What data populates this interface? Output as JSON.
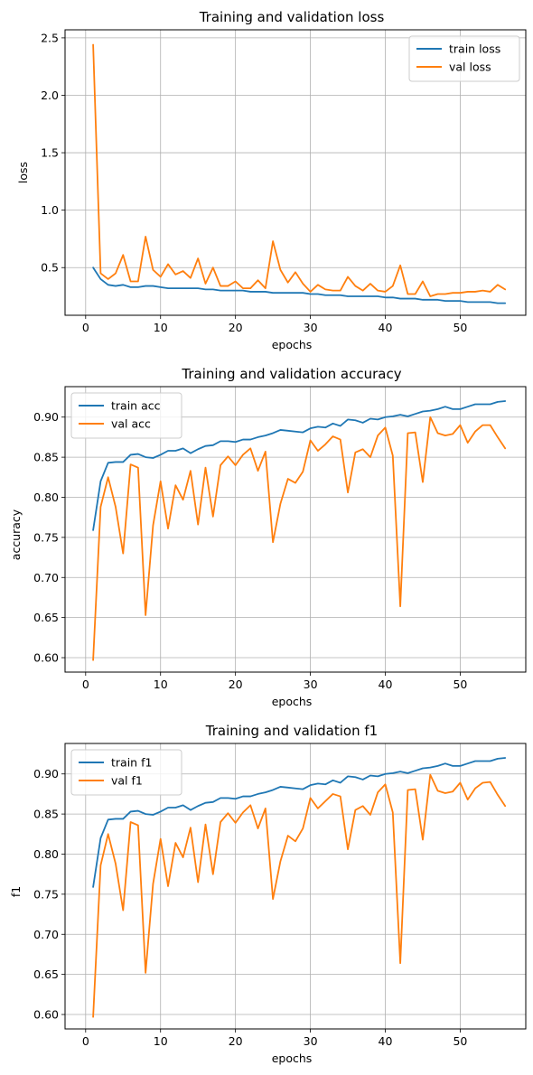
{
  "colors": {
    "train": "#1f77b4",
    "val": "#ff7f0e",
    "grid": "#b0b0b0"
  },
  "chart_data": [
    {
      "type": "line",
      "title": "Training and validation loss",
      "xlabel": "epochs",
      "ylabel": "loss",
      "xlim": [
        -2.75,
        58.75
      ],
      "ylim": [
        0.085,
        2.57
      ],
      "xticks": [
        0,
        10,
        20,
        30,
        40,
        50
      ],
      "xtick_labels": [
        "0",
        "10",
        "20",
        "30",
        "40",
        "50"
      ],
      "yticks": [
        0.5,
        1.0,
        1.5,
        2.0,
        2.5
      ],
      "ytick_labels": [
        "0.5",
        "1.0",
        "1.5",
        "2.0",
        "2.5"
      ],
      "grid": true,
      "legend": "upper right",
      "x": [
        1,
        2,
        3,
        4,
        5,
        6,
        7,
        8,
        9,
        10,
        11,
        12,
        13,
        14,
        15,
        16,
        17,
        18,
        19,
        20,
        21,
        22,
        23,
        24,
        25,
        26,
        27,
        28,
        29,
        30,
        31,
        32,
        33,
        34,
        35,
        36,
        37,
        38,
        39,
        40,
        41,
        42,
        43,
        44,
        45,
        46,
        47,
        48,
        49,
        50,
        51,
        52,
        53,
        54,
        55,
        56
      ],
      "series": [
        {
          "name": "train loss",
          "values": [
            0.5,
            0.4,
            0.35,
            0.34,
            0.35,
            0.33,
            0.33,
            0.34,
            0.34,
            0.33,
            0.32,
            0.32,
            0.32,
            0.32,
            0.32,
            0.31,
            0.31,
            0.3,
            0.3,
            0.3,
            0.3,
            0.29,
            0.29,
            0.29,
            0.28,
            0.28,
            0.28,
            0.28,
            0.28,
            0.27,
            0.27,
            0.26,
            0.26,
            0.26,
            0.25,
            0.25,
            0.25,
            0.25,
            0.25,
            0.24,
            0.24,
            0.23,
            0.23,
            0.23,
            0.22,
            0.22,
            0.22,
            0.21,
            0.21,
            0.21,
            0.2,
            0.2,
            0.2,
            0.2,
            0.19,
            0.19
          ]
        },
        {
          "name": "val loss",
          "values": [
            2.44,
            0.45,
            0.4,
            0.45,
            0.61,
            0.38,
            0.38,
            0.77,
            0.48,
            0.42,
            0.53,
            0.44,
            0.47,
            0.41,
            0.58,
            0.36,
            0.5,
            0.34,
            0.34,
            0.38,
            0.32,
            0.32,
            0.39,
            0.32,
            0.73,
            0.48,
            0.37,
            0.46,
            0.36,
            0.29,
            0.35,
            0.31,
            0.3,
            0.3,
            0.42,
            0.34,
            0.3,
            0.36,
            0.3,
            0.29,
            0.34,
            0.52,
            0.27,
            0.27,
            0.38,
            0.25,
            0.27,
            0.27,
            0.28,
            0.28,
            0.29,
            0.29,
            0.3,
            0.29,
            0.35,
            0.31
          ]
        }
      ]
    },
    {
      "type": "line",
      "title": "Training and validation accuracy",
      "xlabel": "epochs",
      "ylabel": "accuracy",
      "xlim": [
        -2.75,
        58.75
      ],
      "ylim": [
        0.582,
        0.938
      ],
      "xticks": [
        0,
        10,
        20,
        30,
        40,
        50
      ],
      "xtick_labels": [
        "0",
        "10",
        "20",
        "30",
        "40",
        "50"
      ],
      "yticks": [
        0.6,
        0.65,
        0.7,
        0.75,
        0.8,
        0.85,
        0.9
      ],
      "ytick_labels": [
        "0.60",
        "0.65",
        "0.70",
        "0.75",
        "0.80",
        "0.85",
        "0.90"
      ],
      "grid": true,
      "legend": "upper left",
      "x": [
        1,
        2,
        3,
        4,
        5,
        6,
        7,
        8,
        9,
        10,
        11,
        12,
        13,
        14,
        15,
        16,
        17,
        18,
        19,
        20,
        21,
        22,
        23,
        24,
        25,
        26,
        27,
        28,
        29,
        30,
        31,
        32,
        33,
        34,
        35,
        36,
        37,
        38,
        39,
        40,
        41,
        42,
        43,
        44,
        45,
        46,
        47,
        48,
        49,
        50,
        51,
        52,
        53,
        54,
        55,
        56
      ],
      "series": [
        {
          "name": "train acc",
          "values": [
            0.759,
            0.82,
            0.843,
            0.844,
            0.844,
            0.853,
            0.854,
            0.85,
            0.849,
            0.853,
            0.858,
            0.858,
            0.861,
            0.855,
            0.86,
            0.864,
            0.865,
            0.87,
            0.87,
            0.869,
            0.872,
            0.872,
            0.875,
            0.877,
            0.88,
            0.884,
            0.883,
            0.882,
            0.881,
            0.886,
            0.888,
            0.887,
            0.892,
            0.889,
            0.897,
            0.896,
            0.893,
            0.898,
            0.897,
            0.9,
            0.901,
            0.903,
            0.901,
            0.904,
            0.907,
            0.908,
            0.91,
            0.913,
            0.91,
            0.91,
            0.913,
            0.916,
            0.916,
            0.916,
            0.919,
            0.92
          ]
        },
        {
          "name": "val acc",
          "values": [
            0.597,
            0.788,
            0.825,
            0.788,
            0.73,
            0.841,
            0.837,
            0.653,
            0.765,
            0.82,
            0.761,
            0.815,
            0.797,
            0.833,
            0.766,
            0.837,
            0.776,
            0.84,
            0.851,
            0.84,
            0.853,
            0.861,
            0.833,
            0.857,
            0.744,
            0.792,
            0.823,
            0.818,
            0.832,
            0.871,
            0.858,
            0.866,
            0.876,
            0.872,
            0.806,
            0.856,
            0.86,
            0.85,
            0.877,
            0.887,
            0.852,
            0.664,
            0.88,
            0.881,
            0.819,
            0.9,
            0.88,
            0.877,
            0.879,
            0.89,
            0.868,
            0.882,
            0.89,
            0.89,
            0.875,
            0.861
          ]
        }
      ]
    },
    {
      "type": "line",
      "title": "Training and validation f1",
      "xlabel": "epochs",
      "ylabel": "f1",
      "xlim": [
        -2.75,
        58.75
      ],
      "ylim": [
        0.582,
        0.938
      ],
      "xticks": [
        0,
        10,
        20,
        30,
        40,
        50
      ],
      "xtick_labels": [
        "0",
        "10",
        "20",
        "30",
        "40",
        "50"
      ],
      "yticks": [
        0.6,
        0.65,
        0.7,
        0.75,
        0.8,
        0.85,
        0.9
      ],
      "ytick_labels": [
        "0.60",
        "0.65",
        "0.70",
        "0.75",
        "0.80",
        "0.85",
        "0.90"
      ],
      "grid": true,
      "legend": "upper left",
      "x": [
        1,
        2,
        3,
        4,
        5,
        6,
        7,
        8,
        9,
        10,
        11,
        12,
        13,
        14,
        15,
        16,
        17,
        18,
        19,
        20,
        21,
        22,
        23,
        24,
        25,
        26,
        27,
        28,
        29,
        30,
        31,
        32,
        33,
        34,
        35,
        36,
        37,
        38,
        39,
        40,
        41,
        42,
        43,
        44,
        45,
        46,
        47,
        48,
        49,
        50,
        51,
        52,
        53,
        54,
        55,
        56
      ],
      "series": [
        {
          "name": "train f1",
          "values": [
            0.759,
            0.82,
            0.843,
            0.844,
            0.844,
            0.853,
            0.854,
            0.85,
            0.849,
            0.853,
            0.858,
            0.858,
            0.861,
            0.855,
            0.86,
            0.864,
            0.865,
            0.87,
            0.87,
            0.869,
            0.872,
            0.872,
            0.875,
            0.877,
            0.88,
            0.884,
            0.883,
            0.882,
            0.881,
            0.886,
            0.888,
            0.887,
            0.892,
            0.889,
            0.897,
            0.896,
            0.893,
            0.898,
            0.897,
            0.9,
            0.901,
            0.903,
            0.901,
            0.904,
            0.907,
            0.908,
            0.91,
            0.913,
            0.91,
            0.91,
            0.913,
            0.916,
            0.916,
            0.916,
            0.919,
            0.92
          ]
        },
        {
          "name": "val f1",
          "values": [
            0.597,
            0.786,
            0.825,
            0.788,
            0.73,
            0.84,
            0.836,
            0.652,
            0.763,
            0.819,
            0.76,
            0.814,
            0.796,
            0.833,
            0.765,
            0.837,
            0.775,
            0.84,
            0.851,
            0.839,
            0.852,
            0.861,
            0.832,
            0.857,
            0.744,
            0.791,
            0.823,
            0.816,
            0.832,
            0.87,
            0.857,
            0.866,
            0.875,
            0.872,
            0.806,
            0.855,
            0.86,
            0.849,
            0.877,
            0.887,
            0.852,
            0.664,
            0.88,
            0.881,
            0.818,
            0.899,
            0.879,
            0.876,
            0.878,
            0.889,
            0.868,
            0.882,
            0.889,
            0.89,
            0.874,
            0.86
          ]
        }
      ]
    }
  ]
}
